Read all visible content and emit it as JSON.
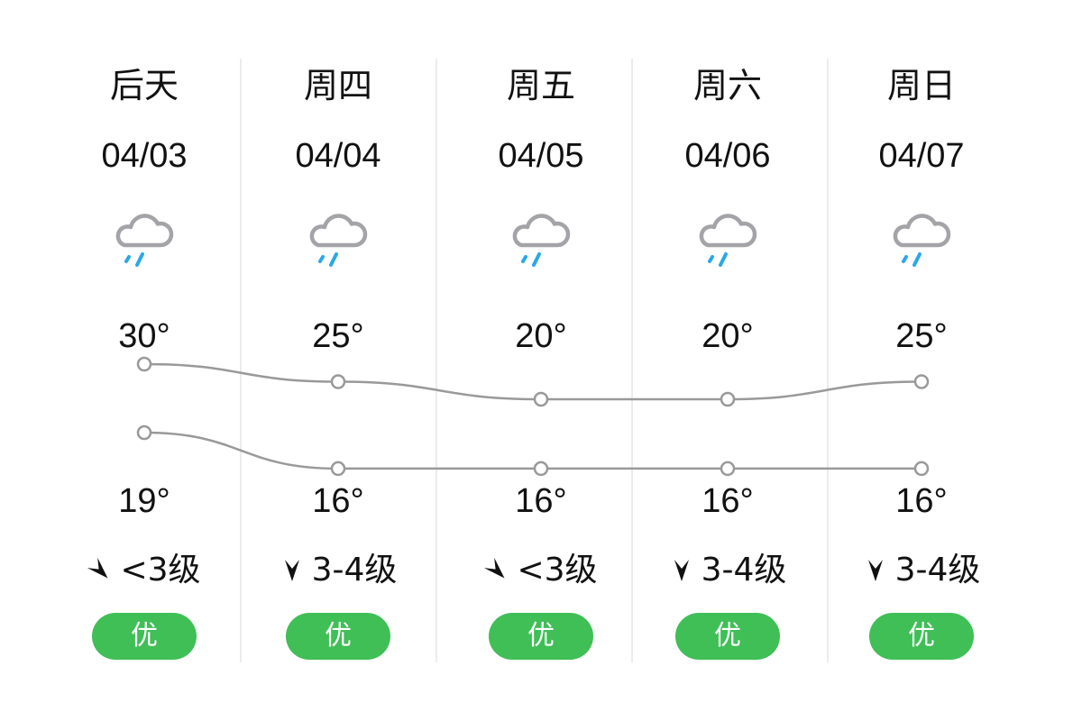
{
  "days": [
    {
      "day": "后天",
      "date": "04/03",
      "weather_icon": "rain-icon",
      "high": "30°",
      "low": "19°",
      "high_value": 30,
      "low_value": 19,
      "wind_direction": "northwest",
      "wind": "<3级",
      "aqi": "优"
    },
    {
      "day": "周四",
      "date": "04/04",
      "weather_icon": "rain-icon",
      "high": "25°",
      "low": "16°",
      "high_value": 25,
      "low_value": 16,
      "wind_direction": "north",
      "wind": "3-4级",
      "aqi": "优"
    },
    {
      "day": "周五",
      "date": "04/05",
      "weather_icon": "rain-icon",
      "high": "20°",
      "low": "16°",
      "high_value": 20,
      "low_value": 16,
      "wind_direction": "northwest",
      "wind": "<3级",
      "aqi": "优"
    },
    {
      "day": "周六",
      "date": "04/06",
      "weather_icon": "rain-icon",
      "high": "20°",
      "low": "16°",
      "high_value": 20,
      "low_value": 16,
      "wind_direction": "north",
      "wind": "3-4级",
      "aqi": "优"
    },
    {
      "day": "周日",
      "date": "04/07",
      "weather_icon": "rain-icon",
      "high": "25°",
      "low": "16°",
      "high_value": 25,
      "low_value": 16,
      "wind_direction": "north",
      "wind": "3-4级",
      "aqi": "优"
    }
  ],
  "colors": {
    "aqi_good": "#3fbf56",
    "rain": "#2aa8e8",
    "cloud": "#a3a3a8",
    "line": "#999999"
  }
}
